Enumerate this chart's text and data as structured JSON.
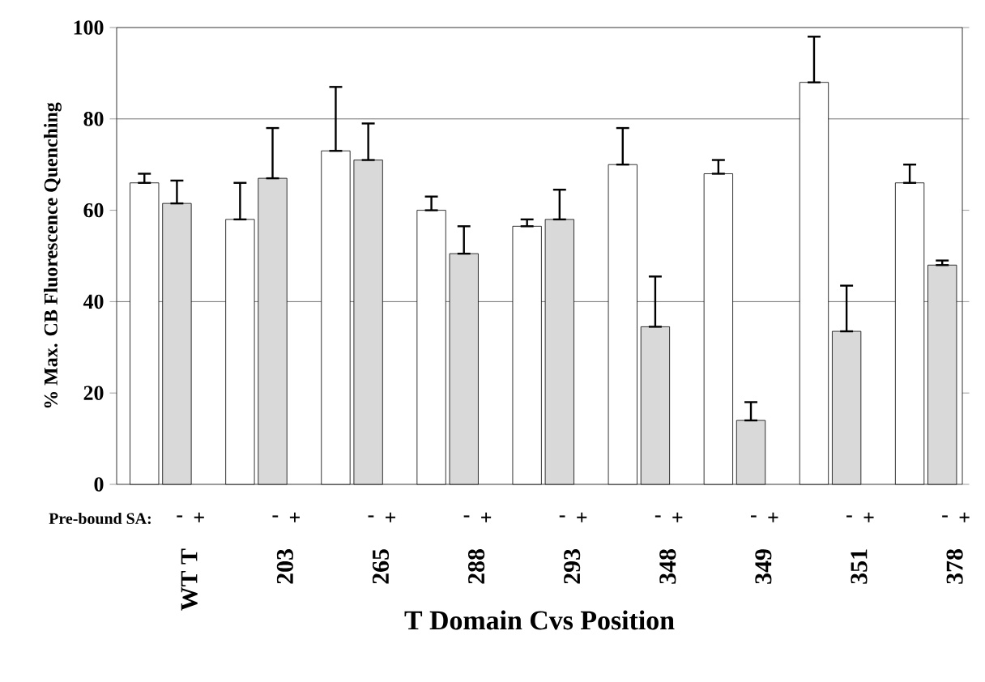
{
  "chart_data": {
    "type": "bar",
    "xlabel": "T Domain Cvs Position",
    "ylabel": "% Max. CB Fluorescence Quenching",
    "legend_title": "Pre-bound SA:",
    "categories": [
      "WT T",
      "203",
      "265",
      "288",
      "293",
      "348",
      "349",
      "351",
      "378"
    ],
    "series": [
      {
        "name": "-",
        "color": "#ffffff",
        "values": [
          66,
          58,
          73,
          60,
          56.5,
          70,
          68,
          88,
          66
        ],
        "errors": [
          [
            66,
            68
          ],
          [
            58,
            66
          ],
          [
            73,
            87
          ],
          [
            60,
            63
          ],
          [
            56.5,
            58
          ],
          [
            70,
            78
          ],
          [
            68,
            71
          ],
          [
            88,
            98
          ],
          [
            66,
            70
          ]
        ]
      },
      {
        "name": "+",
        "color": "#d9d9d9",
        "values": [
          61.5,
          67,
          71,
          50.5,
          58,
          34.5,
          14,
          33.5,
          48
        ],
        "errors": [
          [
            61.5,
            66.5
          ],
          [
            67,
            78
          ],
          [
            71,
            79
          ],
          [
            50.5,
            56.5
          ],
          [
            58,
            64.5
          ],
          [
            34.5,
            45.5
          ],
          [
            14,
            18
          ],
          [
            33.5,
            43.5
          ],
          [
            48,
            49
          ]
        ]
      }
    ],
    "ylim": [
      0,
      100
    ],
    "yticks": [
      0,
      20,
      40,
      60,
      80,
      100
    ],
    "ref_lines": [
      {
        "axis": "y",
        "value": 40
      },
      {
        "axis": "y",
        "value": 80
      }
    ]
  }
}
